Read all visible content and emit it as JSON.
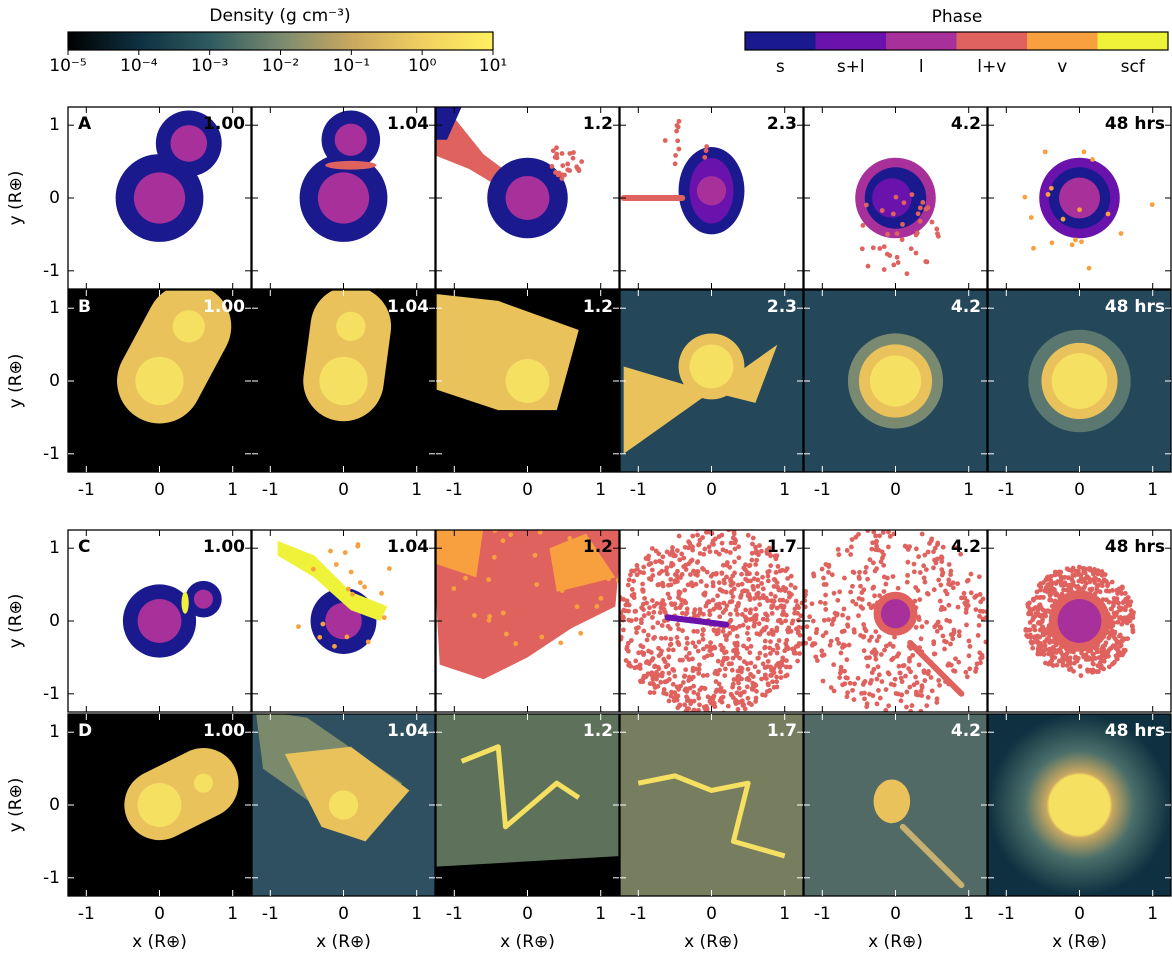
{
  "density_colorbar": {
    "label": "Density (g cm⁻³)",
    "scale": "log",
    "lim": [
      1e-05,
      10
    ],
    "ticks": [
      {
        "value": 1e-05,
        "label": "10⁻⁵"
      },
      {
        "value": 0.0001,
        "label": "10⁻⁴"
      },
      {
        "value": 0.001,
        "label": "10⁻³"
      },
      {
        "value": 0.01,
        "label": "10⁻²"
      },
      {
        "value": 0.1,
        "label": "10⁻¹"
      },
      {
        "value": 1,
        "label": "10⁰"
      },
      {
        "value": 10,
        "label": "10¹"
      }
    ],
    "colors": [
      "#000000",
      "#0e3040",
      "#2e5a60",
      "#7a8a70",
      "#c9a860",
      "#f0cf60",
      "#fff060"
    ]
  },
  "phase_colorbar": {
    "label": "Phase",
    "categories": [
      "s",
      "s+l",
      "l",
      "l+v",
      "v",
      "scf"
    ],
    "colors": [
      "#1a1a8e",
      "#6a12ac",
      "#a8309a",
      "#e0625e",
      "#f8a040",
      "#eef238"
    ]
  },
  "axes": {
    "xlabel": "x (R⊕)",
    "ylabel": "y (R⊕)",
    "xlim": [
      -1.25,
      1.25
    ],
    "ylim": [
      -1.25,
      1.25
    ],
    "xticks": [
      -1,
      0,
      1
    ],
    "yticks": [
      -1,
      0,
      1
    ]
  },
  "rows": [
    {
      "label": "A",
      "kind": "phase",
      "times": [
        "1.00",
        "1.04",
        "1.2",
        "2.3",
        "4.2",
        "48 hrs"
      ]
    },
    {
      "label": "B",
      "kind": "density",
      "times": [
        "1.00",
        "1.04",
        "1.2",
        "2.3",
        "4.2",
        "48 hrs"
      ]
    },
    {
      "label": "C",
      "kind": "phase",
      "times": [
        "1.00",
        "1.04",
        "1.2",
        "1.7",
        "4.2",
        "48 hrs"
      ]
    },
    {
      "label": "D",
      "kind": "density",
      "times": [
        "1.00",
        "1.04",
        "1.2",
        "1.7",
        "4.2",
        "48 hrs"
      ]
    }
  ]
}
